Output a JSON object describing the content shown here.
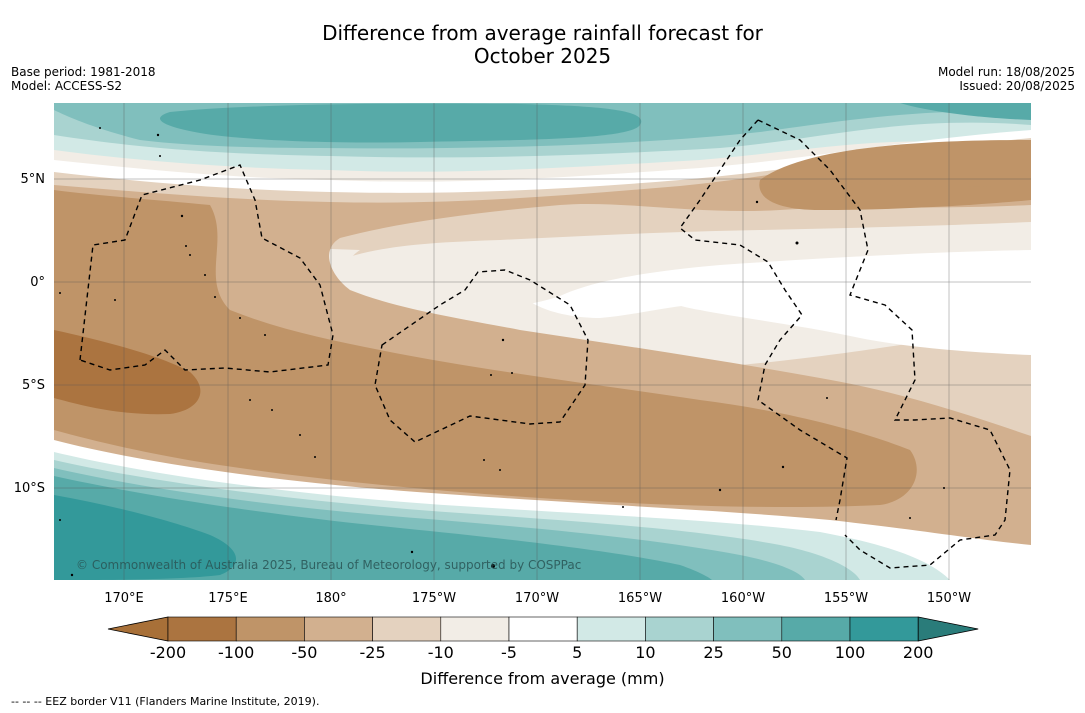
{
  "title_line1": "Difference from average rainfall forecast for",
  "title_line2": "October 2025",
  "meta_left": {
    "base_period": "Base period: 1981-2018",
    "model": "Model: ACCESS-S2"
  },
  "meta_right": {
    "model_run": "Model run: 18/08/2025",
    "issued": "Issued: 20/08/2025"
  },
  "lat_labels": [
    "5°N",
    "0°",
    "5°S",
    "10°S"
  ],
  "lon_labels": [
    "170°E",
    "175°E",
    "180°",
    "175°W",
    "170°W",
    "165°W",
    "160°W",
    "155°W",
    "150°W"
  ],
  "copyright": "© Commonwealth of Australia 2025, Bureau of Meteorology, supported by COSPPac",
  "colorbar": {
    "title": "Difference from average (mm)",
    "ticks": [
      "-200",
      "-100",
      "-50",
      "-25",
      "-10",
      "-5",
      "5",
      "10",
      "25",
      "50",
      "100",
      "200"
    ],
    "colors": [
      "#a87038",
      "#ab7440",
      "#bf9468",
      "#d2b08f",
      "#e4d2bf",
      "#f2ede6",
      "#ffffff",
      "#d2e9e6",
      "#a9d3d0",
      "#80bfbd",
      "#57aaa8",
      "#33999a",
      "#2a7c7a"
    ]
  },
  "footer": "--  --  -- EEZ border V11 (Flanders Marine Institute, 2019)."
}
